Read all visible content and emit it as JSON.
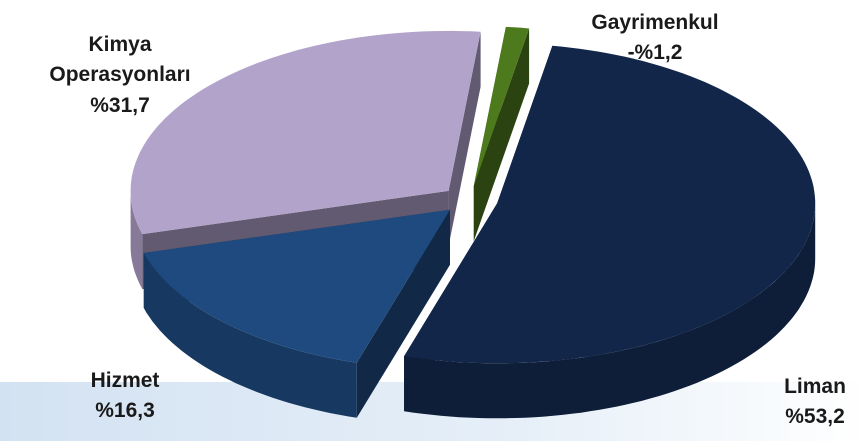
{
  "chart_data": {
    "type": "pie",
    "categories": [
      "Liman",
      "Hizmet",
      "Kimya Operasyonları",
      "Gayrimenkul"
    ],
    "values": [
      53.2,
      16.3,
      31.7,
      -1.2
    ],
    "value_labels": [
      "%53,2",
      "%16,3",
      "%31,7",
      "-%1,2"
    ],
    "colors": [
      "#12264a",
      "#1f4a80",
      "#b2a3cb",
      "#4e7a1e"
    ]
  }
}
